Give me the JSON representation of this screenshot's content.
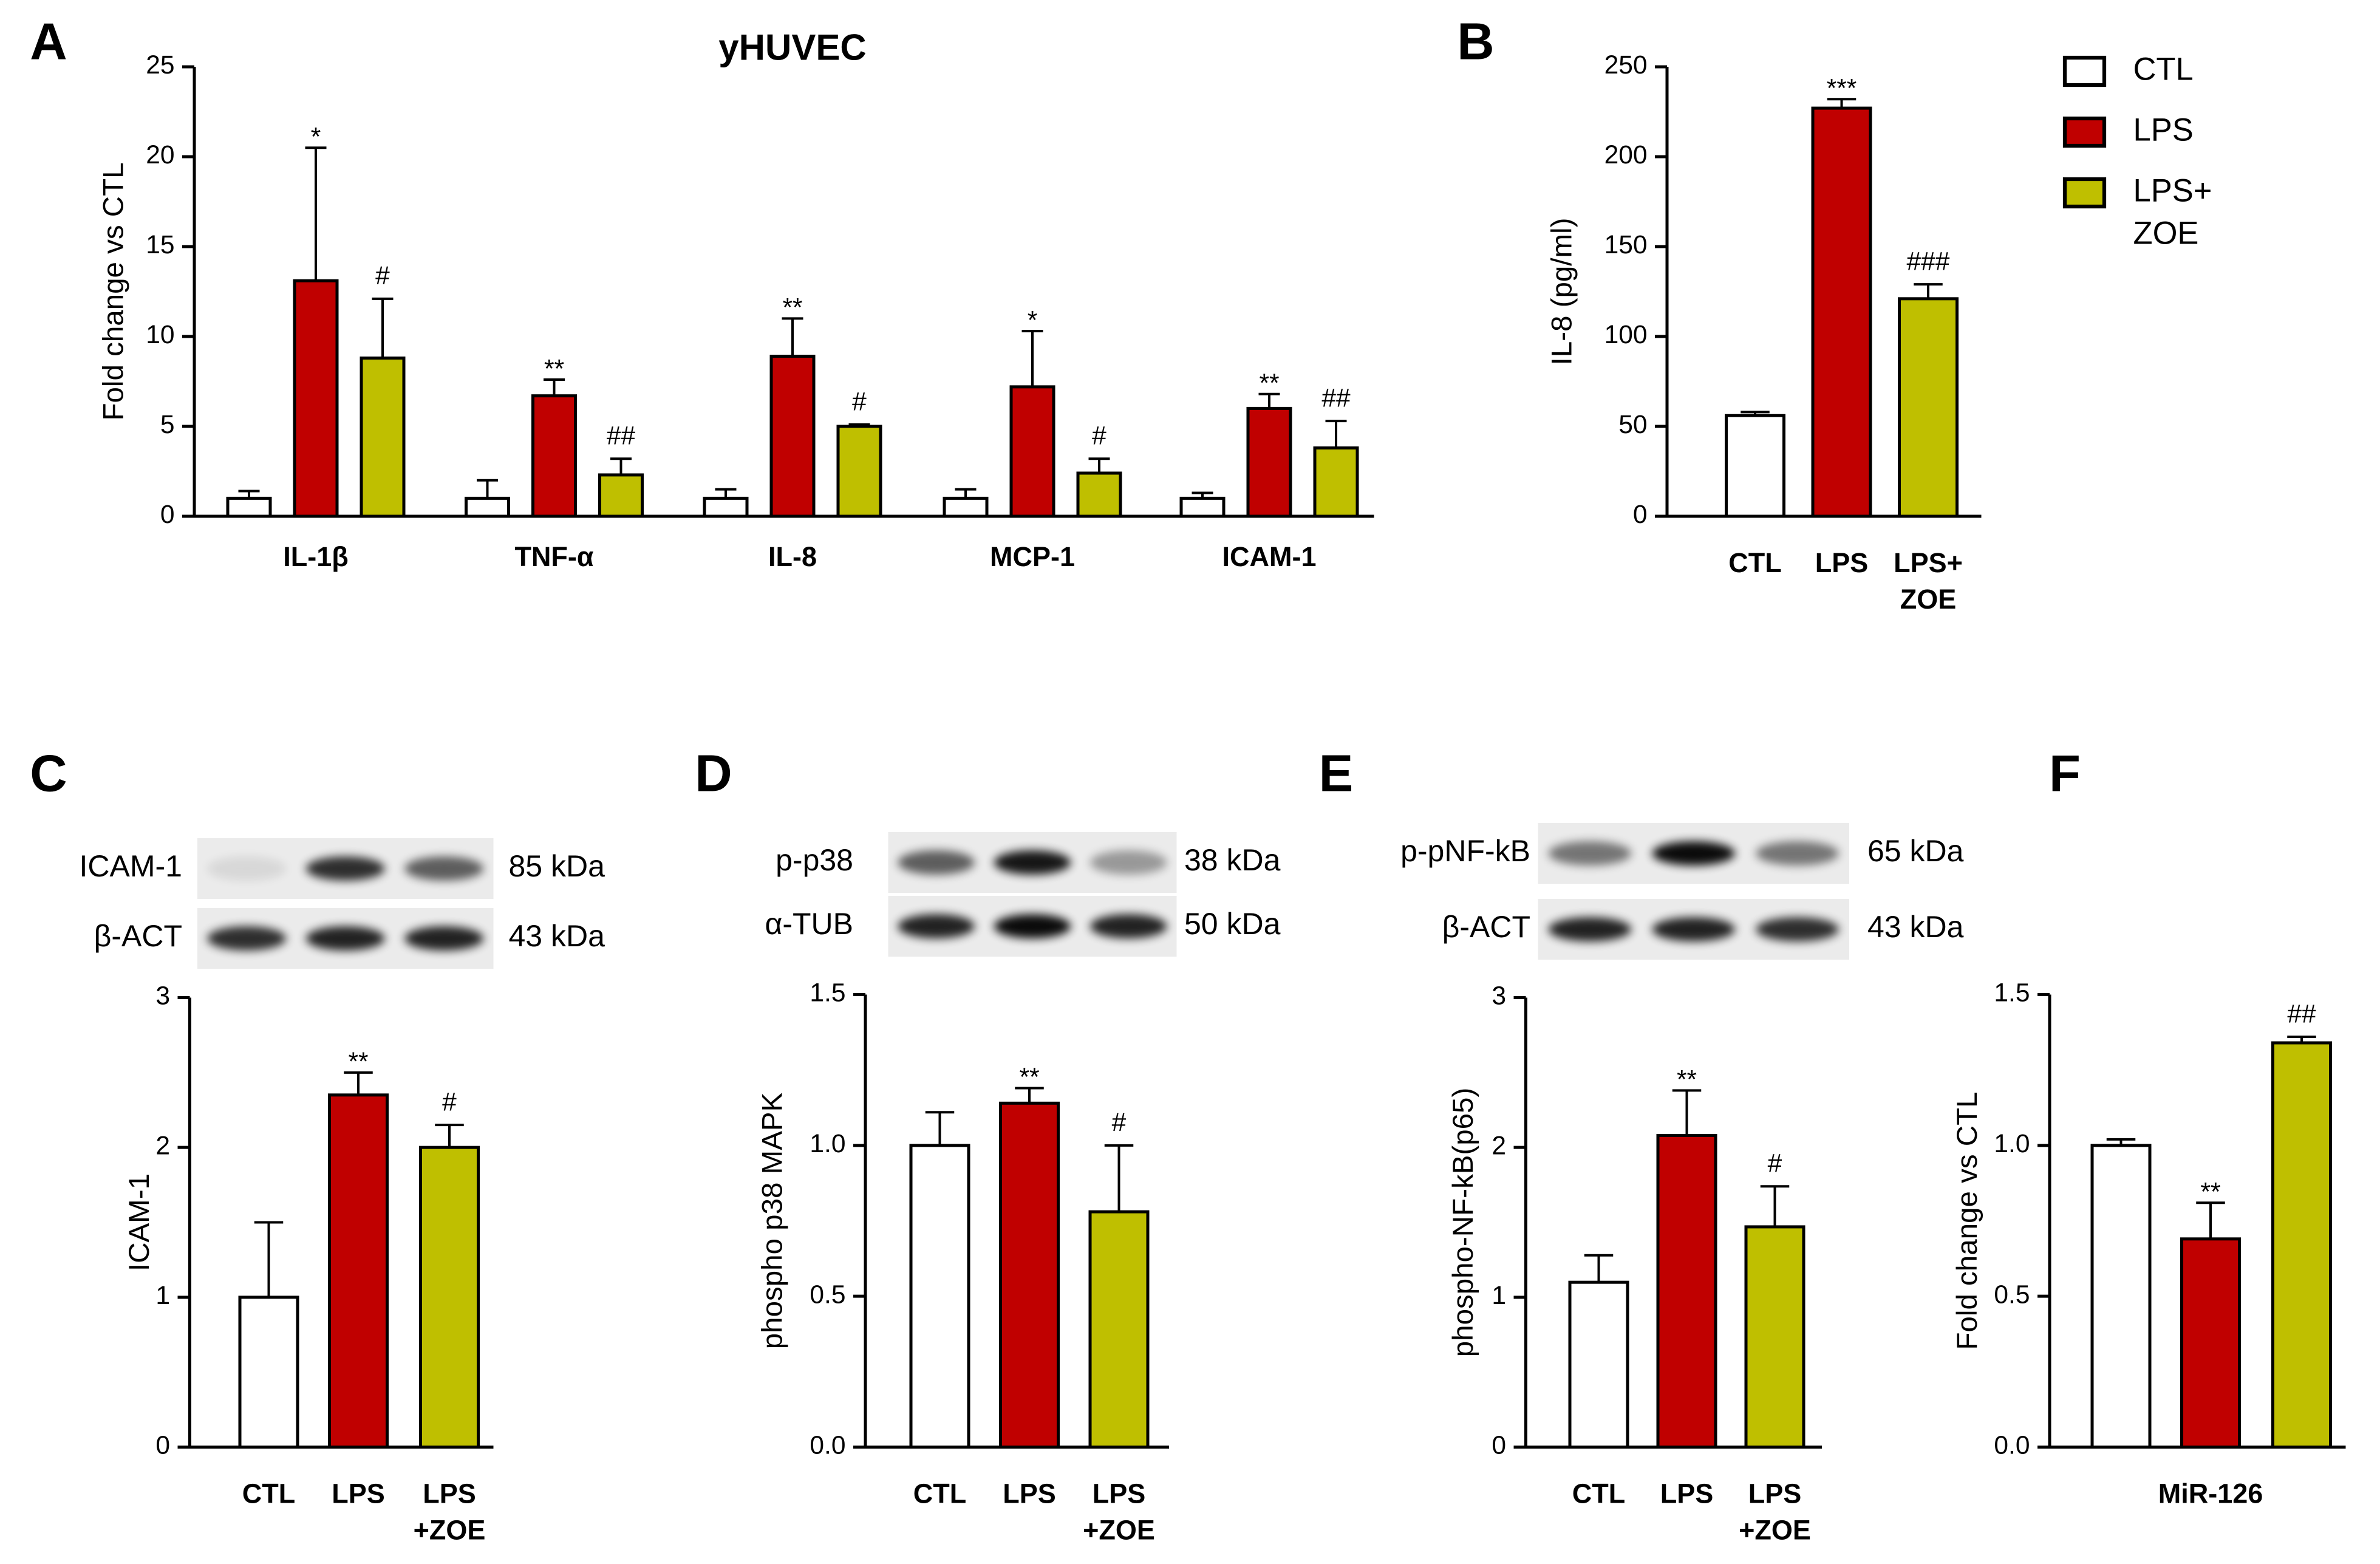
{
  "chart_data": [
    {
      "type": "grouped_bar",
      "panel": "A",
      "title": "yHUVEC",
      "ylabel": "Fold change vs CTL",
      "categories": [
        "IL-1β",
        "TNF-α",
        "IL-8",
        "MCP-1",
        "ICAM-1"
      ],
      "series": [
        {
          "name": "CTL",
          "color": "#ffffff",
          "values": [
            1,
            1,
            1,
            1,
            1
          ],
          "errors": [
            0.4,
            1.0,
            0.5,
            0.5,
            0.3
          ],
          "annotations": [
            null,
            null,
            null,
            null,
            null
          ]
        },
        {
          "name": "LPS",
          "color": "#c00000",
          "values": [
            13.1,
            6.7,
            8.9,
            7.2,
            6.0
          ],
          "errors": [
            7.4,
            0.9,
            2.1,
            3.1,
            0.8
          ],
          "annotations": [
            "*",
            "**",
            "**",
            "*",
            "**"
          ]
        },
        {
          "name": "LPS+ ZOE",
          "color": "#bfbf00",
          "values": [
            8.8,
            2.3,
            5.0,
            2.4,
            3.8
          ],
          "errors": [
            3.3,
            0.9,
            0.1,
            0.8,
            1.5
          ],
          "annotations": [
            "#",
            "##",
            "#",
            "#",
            "##"
          ]
        }
      ],
      "ylim": [
        0,
        25
      ],
      "yticks": [
        0,
        5,
        10,
        15,
        20,
        25
      ]
    },
    {
      "type": "bar",
      "panel": "B",
      "ylabel": "IL-8 (pg/ml)",
      "categories": [
        "CTL",
        "LPS",
        "LPS+ ZOE"
      ],
      "values": [
        56,
        227,
        121
      ],
      "errors": [
        2,
        5,
        8
      ],
      "annotations": [
        null,
        "***",
        "###"
      ],
      "colors": [
        "#ffffff",
        "#c00000",
        "#bfbf00"
      ],
      "legend": [
        "CTL",
        "LPS",
        "LPS+ ZOE"
      ],
      "ylim": [
        0,
        250
      ],
      "yticks": [
        0,
        50,
        100,
        150,
        200,
        250
      ]
    },
    {
      "type": "bar",
      "panel": "C",
      "ylabel": "ICAM-1",
      "blot": [
        {
          "protein": "ICAM-1",
          "size": "85 kDa"
        },
        {
          "protein": "β-ACT",
          "size": "43 kDa"
        }
      ],
      "categories": [
        "CTL",
        "LPS",
        "LPS +ZOE"
      ],
      "values": [
        1.0,
        2.35,
        2.0
      ],
      "errors": [
        0.5,
        0.15,
        0.15
      ],
      "annotations": [
        null,
        "**",
        "#"
      ],
      "colors": [
        "#ffffff",
        "#c00000",
        "#bfbf00"
      ],
      "ylim": [
        0,
        3
      ],
      "yticks": [
        0,
        1,
        2,
        3
      ]
    },
    {
      "type": "bar",
      "panel": "D",
      "ylabel": "phospho p38 MAPK",
      "blot": [
        {
          "protein": "p-p38",
          "size": "38 kDa"
        },
        {
          "protein": "α-TUB",
          "size": "50 kDa"
        }
      ],
      "categories": [
        "CTL",
        "LPS",
        "LPS +ZOE"
      ],
      "values": [
        1.0,
        1.14,
        0.78
      ],
      "errors": [
        0.11,
        0.05,
        0.22
      ],
      "annotations": [
        null,
        "**",
        "#"
      ],
      "colors": [
        "#ffffff",
        "#c00000",
        "#bfbf00"
      ],
      "ylim": [
        0,
        1.5
      ],
      "yticks": [
        {
          "value": 0,
          "label": "0.0"
        },
        0.5,
        {
          "value": 1,
          "label": "1.0"
        },
        1.5
      ]
    },
    {
      "type": "bar",
      "panel": "E",
      "ylabel": "phospho-NF-kB(p65)",
      "blot": [
        {
          "protein": "p-pNF-kB",
          "size": "65 kDa"
        },
        {
          "protein": "β-ACT",
          "size": "43 kDa"
        }
      ],
      "categories": [
        "CTL",
        "LPS",
        "LPS +ZOE"
      ],
      "values": [
        1.1,
        2.08,
        1.47
      ],
      "errors": [
        0.18,
        0.3,
        0.27
      ],
      "annotations": [
        null,
        "**",
        "#"
      ],
      "colors": [
        "#ffffff",
        "#c00000",
        "#bfbf00"
      ],
      "ylim": [
        0,
        3
      ],
      "yticks": [
        0,
        1,
        2,
        3
      ]
    },
    {
      "type": "bar",
      "panel": "F",
      "ylabel": "Fold change vs CTL",
      "group_label": "MiR-126",
      "values": [
        1.0,
        0.69,
        1.34
      ],
      "errors": [
        0.02,
        0.12,
        0.02
      ],
      "annotations": [
        null,
        "**",
        "##"
      ],
      "colors": [
        "#ffffff",
        "#c00000",
        "#bfbf00"
      ],
      "ylim": [
        0,
        1.5
      ],
      "yticks": [
        {
          "value": 0,
          "label": "0.0"
        },
        0.5,
        {
          "value": 1,
          "label": "1.0"
        },
        1.5
      ]
    }
  ]
}
